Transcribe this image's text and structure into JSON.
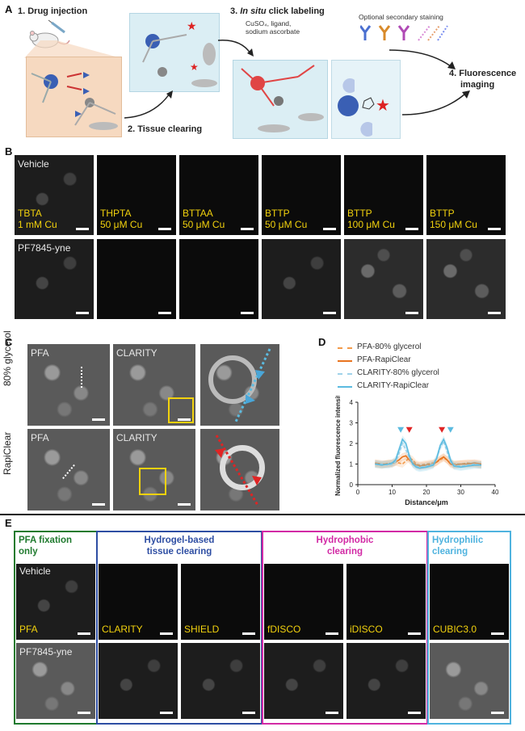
{
  "panel_a": {
    "letter": "A",
    "step1": "1. Drug injection",
    "step2": "2. Tissue clearing",
    "step3_prefix": "3. ",
    "step3_em": "In situ",
    "step3_suffix": " click labeling",
    "step3_reagents": [
      "CuSO₄, ligand,",
      "sodium ascorbate"
    ],
    "optional": "Optional secondary staining",
    "step4": [
      "4. Fluorescence",
      "imaging"
    ]
  },
  "panel_b": {
    "letter": "B",
    "top_row_label": "Vehicle",
    "bottom_row_label": "PF7845-yne",
    "conditions": [
      {
        "ligand": "TBTA",
        "cu": "1 mM Cu"
      },
      {
        "ligand": "THPTA",
        "cu": "50 μM Cu"
      },
      {
        "ligand": "BTTAA",
        "cu": "50 μM Cu"
      },
      {
        "ligand": "BTTP",
        "cu": "50 μM Cu"
      },
      {
        "ligand": "BTTP",
        "cu": "100 μM Cu"
      },
      {
        "ligand": "BTTP",
        "cu": "150 μM Cu"
      }
    ]
  },
  "panel_c": {
    "letter": "C",
    "row_labels": [
      "80% glycerol",
      "RapiClear"
    ],
    "col_labels": [
      "PFA",
      "CLARITY"
    ]
  },
  "panel_d": {
    "letter": "D"
  },
  "chart_data": {
    "type": "line",
    "xlabel": "Distance/μm",
    "ylabel": "Normalized fluorescence intensity",
    "xlim": [
      0,
      40
    ],
    "ylim": [
      0,
      4
    ],
    "xticks": [
      0,
      10,
      20,
      30,
      40
    ],
    "yticks": [
      0,
      1,
      2,
      3,
      4
    ],
    "legend_position": "top",
    "x": [
      5,
      7,
      9,
      10,
      11,
      12,
      13,
      14,
      15,
      16,
      17,
      18,
      20,
      22,
      23,
      24,
      25,
      26,
      27,
      28,
      30,
      32,
      34,
      36
    ],
    "series": [
      {
        "name": "PFA-80% glycerol",
        "color": "#f39a4a",
        "dash": true,
        "values": [
          1.0,
          0.95,
          1.05,
          1.0,
          1.1,
          1.05,
          1.0,
          1.15,
          1.3,
          1.2,
          1.0,
          0.95,
          1.0,
          1.05,
          1.1,
          1.2,
          1.3,
          1.2,
          1.05,
          1.0,
          1.0,
          1.05,
          1.0,
          0.95
        ]
      },
      {
        "name": "PFA-RapiClear",
        "color": "#e8741f",
        "dash": false,
        "values": [
          1.05,
          1.0,
          1.0,
          1.05,
          1.1,
          1.2,
          1.35,
          1.4,
          1.2,
          1.05,
          0.95,
          0.9,
          0.95,
          1.0,
          1.1,
          1.25,
          1.35,
          1.2,
          1.0,
          0.95,
          1.0,
          1.0,
          1.05,
          1.0
        ]
      },
      {
        "name": "CLARITY-80% glycerol",
        "color": "#9fd2ea",
        "dash": true,
        "values": [
          1.0,
          1.0,
          0.95,
          1.0,
          1.1,
          1.5,
          2.0,
          1.7,
          1.3,
          1.0,
          0.9,
          0.85,
          0.9,
          1.0,
          1.3,
          1.8,
          2.1,
          1.6,
          1.1,
          0.95,
          0.9,
          0.95,
          1.0,
          0.95
        ]
      },
      {
        "name": "CLARITY-RapiClear",
        "color": "#5bbbe0",
        "dash": false,
        "values": [
          1.0,
          0.95,
          1.0,
          1.05,
          1.2,
          1.7,
          2.2,
          2.0,
          1.4,
          1.0,
          0.85,
          0.8,
          0.85,
          0.95,
          1.3,
          1.9,
          2.2,
          1.8,
          1.2,
          0.9,
          0.85,
          0.9,
          0.95,
          0.95
        ]
      }
    ],
    "markers": [
      {
        "x": 12.5,
        "color": "#5bbbe0"
      },
      {
        "x": 15,
        "color": "#e02424"
      },
      {
        "x": 24.5,
        "color": "#e02424"
      },
      {
        "x": 27,
        "color": "#5bbbe0"
      }
    ]
  },
  "panel_e": {
    "letter": "E",
    "groups": [
      {
        "title": [
          "PFA fixation",
          "only"
        ],
        "color": "#1f7a2e"
      },
      {
        "title": [
          "Hydrogel-based",
          "tissue clearing"
        ],
        "color": "#2e4ea3"
      },
      {
        "title": [
          "Hydrophobic",
          "clearing"
        ],
        "color": "#d22aa5"
      },
      {
        "title": [
          "Hydrophilic",
          "clearing"
        ],
        "color": "#4fb3df"
      }
    ],
    "top_row_label": "Vehicle",
    "bottom_row_label": "PF7845-yne",
    "conditions": [
      "PFA",
      "CLARITY",
      "SHIELD",
      "fDISCO",
      "iDISCO",
      "CUBIC3.0"
    ]
  }
}
